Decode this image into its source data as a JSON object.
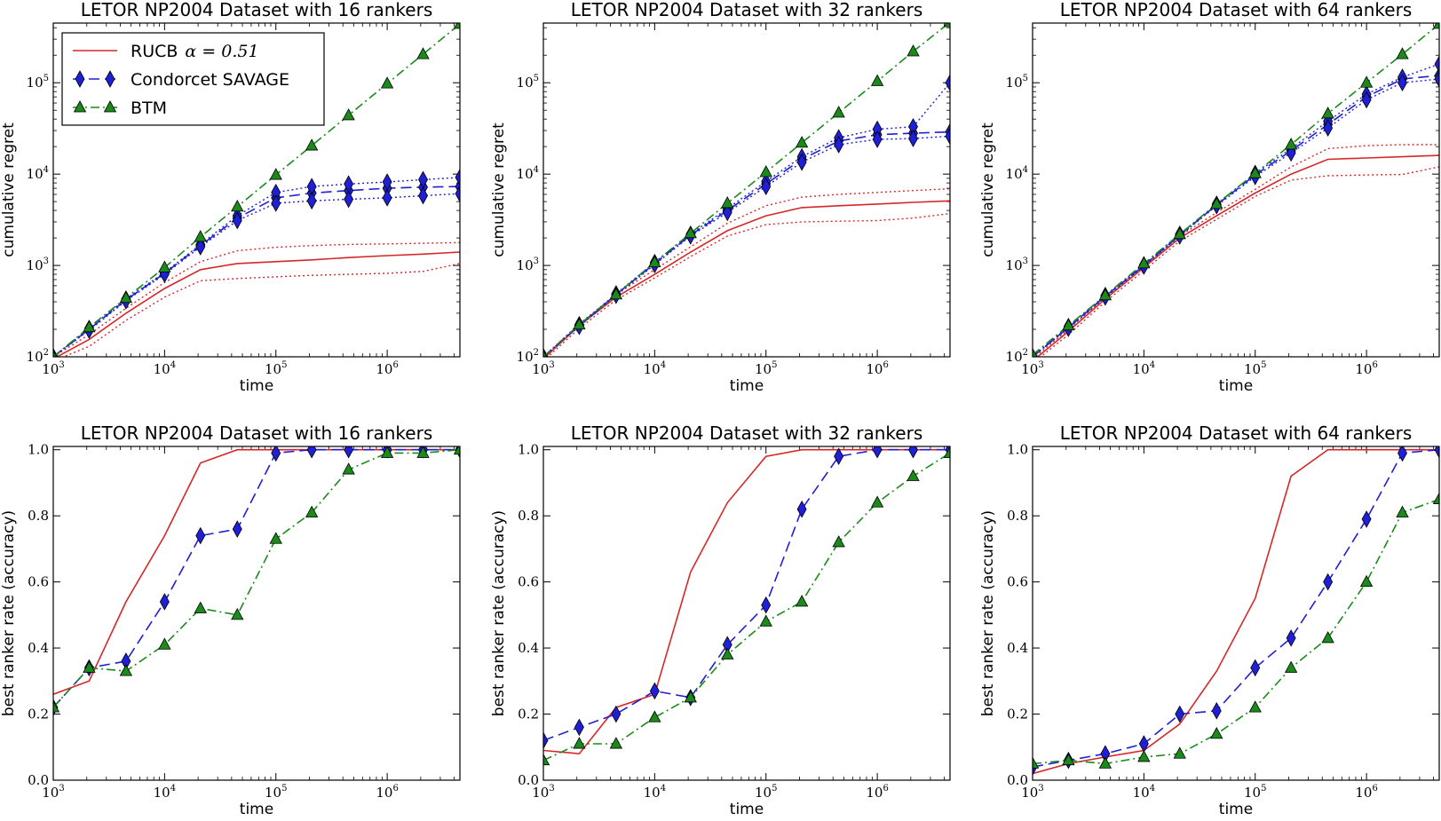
{
  "legend": {
    "entries": [
      {
        "name": "RUCB",
        "math": "α = 0.51",
        "color": "#d62728",
        "style": "solid"
      },
      {
        "name": "Condorcet SAVAGE",
        "color": "#1f1fd6",
        "style": "dashed",
        "marker": "diamond"
      },
      {
        "name": "BTM",
        "color": "#1a8a1a",
        "style": "dashdot",
        "marker": "triangle"
      }
    ]
  },
  "chart_data": [
    {
      "type": "line",
      "title": "LETOR NP2004 Dataset with 16 rankers",
      "xlabel": "time",
      "ylabel": "cumulative regret",
      "xscale": "log",
      "yscale": "log",
      "xlim": [
        1000,
        4500000
      ],
      "ylim": [
        100,
        450000
      ],
      "xticks": [
        "10^3",
        "10^4",
        "10^5",
        "10^6"
      ],
      "yticks": [
        "10^2",
        "10^3",
        "10^4",
        "10^5"
      ],
      "x": [
        1000,
        2100,
        4500,
        10000,
        21000,
        45000,
        100000,
        210000,
        450000,
        1000000,
        2100000,
        4500000
      ],
      "series": [
        {
          "name": "RUCB",
          "values": [
            95,
            155,
            300,
            560,
            900,
            1050,
            1100,
            1150,
            1220,
            1280,
            1330,
            1400
          ]
        },
        {
          "name": "RUCB upper",
          "band": true,
          "values": [
            100,
            175,
            340,
            650,
            1100,
            1450,
            1580,
            1650,
            1700,
            1720,
            1750,
            1780
          ]
        },
        {
          "name": "RUCB lower",
          "band": true,
          "values": [
            90,
            130,
            250,
            450,
            680,
            720,
            750,
            780,
            800,
            820,
            860,
            1050
          ]
        },
        {
          "name": "Condorcet SAVAGE",
          "values": [
            100,
            200,
            420,
            820,
            1650,
            3300,
            5500,
            6200,
            6600,
            7000,
            7200,
            7300
          ]
        },
        {
          "name": "Condorcet SAVAGE upper",
          "band": true,
          "values": [
            100,
            205,
            430,
            840,
            1700,
            3500,
            6300,
            7300,
            7800,
            8200,
            8700,
            9200
          ]
        },
        {
          "name": "Condorcet SAVAGE lower",
          "band": true,
          "values": [
            100,
            195,
            410,
            800,
            1600,
            3100,
            4800,
            5100,
            5300,
            5500,
            5800,
            6100
          ]
        },
        {
          "name": "BTM",
          "values": [
            100,
            210,
            440,
            950,
            2050,
            4400,
            9800,
            20500,
            44000,
            98000,
            205000,
            440000
          ]
        }
      ]
    },
    {
      "type": "line",
      "title": "LETOR NP2004 Dataset with 32 rankers",
      "xlabel": "time",
      "ylabel": "cumulative regret",
      "xscale": "log",
      "yscale": "log",
      "xlim": [
        1000,
        4500000
      ],
      "ylim": [
        100,
        450000
      ],
      "xticks": [
        "10^3",
        "10^4",
        "10^5",
        "10^6"
      ],
      "yticks": [
        "10^2",
        "10^3",
        "10^4",
        "10^5"
      ],
      "x": [
        1000,
        2100,
        4500,
        10000,
        21000,
        45000,
        100000,
        210000,
        450000,
        1000000,
        2100000,
        4500000
      ],
      "series": [
        {
          "name": "RUCB",
          "values": [
            95,
            220,
            450,
            800,
            1400,
            2400,
            3500,
            4300,
            4500,
            4700,
            4900,
            5100
          ]
        },
        {
          "name": "RUCB upper",
          "band": true,
          "values": [
            100,
            230,
            480,
            900,
            1600,
            2900,
            4500,
            5600,
            6000,
            6300,
            6600,
            6900
          ]
        },
        {
          "name": "RUCB lower",
          "band": true,
          "values": [
            90,
            205,
            420,
            730,
            1250,
            2100,
            2800,
            3000,
            3050,
            3100,
            3300,
            3700
          ]
        },
        {
          "name": "Condorcet SAVAGE",
          "values": [
            100,
            220,
            480,
            1050,
            2150,
            4000,
            7800,
            14500,
            23000,
            27000,
            28000,
            29000
          ]
        },
        {
          "name": "Condorcet SAVAGE upper",
          "band": true,
          "values": [
            100,
            225,
            490,
            1080,
            2200,
            4200,
            8300,
            15500,
            25000,
            31000,
            33000,
            100000
          ]
        },
        {
          "name": "Condorcet SAVAGE lower",
          "band": true,
          "values": [
            100,
            215,
            470,
            1020,
            2100,
            3800,
            7300,
            13500,
            21000,
            24000,
            24500,
            26000
          ]
        },
        {
          "name": "BTM",
          "values": [
            100,
            225,
            480,
            1080,
            2250,
            4800,
            10500,
            22000,
            47000,
            104000,
            220000,
            460000
          ]
        }
      ]
    },
    {
      "type": "line",
      "title": "LETOR NP2004 Dataset with 64 rankers",
      "xlabel": "time",
      "ylabel": "cumulative regret",
      "xscale": "log",
      "yscale": "log",
      "xlim": [
        1000,
        4500000
      ],
      "ylim": [
        100,
        450000
      ],
      "xticks": [
        "10^3",
        "10^4",
        "10^5",
        "10^6"
      ],
      "yticks": [
        "10^2",
        "10^3",
        "10^4",
        "10^5"
      ],
      "x": [
        1000,
        2100,
        4500,
        10000,
        21000,
        45000,
        100000,
        210000,
        450000,
        1000000,
        2100000,
        4500000
      ],
      "series": [
        {
          "name": "RUCB",
          "values": [
            90,
            190,
            430,
            950,
            2000,
            3500,
            6200,
            10000,
            14500,
            15000,
            15500,
            16000
          ]
        },
        {
          "name": "RUCB upper",
          "band": true,
          "values": [
            95,
            200,
            450,
            1000,
            2100,
            3800,
            6800,
            12000,
            19000,
            20500,
            21000,
            21000
          ]
        },
        {
          "name": "RUCB lower",
          "band": true,
          "values": [
            85,
            175,
            400,
            880,
            1850,
            3200,
            5700,
            8600,
            9600,
            9800,
            9900,
            12000
          ]
        },
        {
          "name": "Condorcet SAVAGE",
          "values": [
            100,
            210,
            460,
            1000,
            2150,
            4600,
            9800,
            18000,
            35000,
            70000,
            110000,
            120000
          ]
        },
        {
          "name": "Condorcet SAVAGE upper",
          "band": true,
          "values": [
            100,
            215,
            470,
            1020,
            2200,
            4700,
            10200,
            19000,
            38000,
            75000,
            115000,
            160000
          ]
        },
        {
          "name": "Condorcet SAVAGE lower",
          "band": true,
          "values": [
            100,
            205,
            450,
            980,
            2100,
            4500,
            9400,
            17000,
            32000,
            65000,
            100000,
            110000
          ]
        },
        {
          "name": "BTM",
          "values": [
            105,
            220,
            470,
            1050,
            2200,
            4700,
            10200,
            21000,
            46000,
            100000,
            205000,
            440000
          ]
        }
      ]
    },
    {
      "type": "line",
      "title": "LETOR NP2004 Dataset with 16 rankers",
      "xlabel": "time",
      "ylabel": "best ranker rate (accuracy)",
      "xscale": "log",
      "yscale": "linear",
      "xlim": [
        1000,
        4500000
      ],
      "ylim": [
        0.0,
        1.01
      ],
      "xticks": [
        "10^3",
        "10^4",
        "10^5",
        "10^6"
      ],
      "yticks": [
        "0.0",
        "0.2",
        "0.4",
        "0.6",
        "0.8",
        "1.0"
      ],
      "x": [
        1000,
        2100,
        4500,
        10000,
        21000,
        45000,
        100000,
        210000,
        450000,
        1000000,
        2100000,
        4500000
      ],
      "series": [
        {
          "name": "RUCB",
          "values": [
            0.26,
            0.3,
            0.54,
            0.74,
            0.96,
            1.0,
            1.0,
            1.0,
            1.0,
            1.0,
            1.0,
            1.0
          ]
        },
        {
          "name": "Condorcet SAVAGE",
          "values": [
            0.22,
            0.34,
            0.36,
            0.54,
            0.74,
            0.76,
            0.99,
            1.0,
            1.0,
            1.0,
            1.0,
            1.0
          ]
        },
        {
          "name": "BTM",
          "values": [
            0.22,
            0.34,
            0.33,
            0.41,
            0.52,
            0.5,
            0.73,
            0.81,
            0.94,
            0.99,
            0.99,
            1.0
          ]
        }
      ]
    },
    {
      "type": "line",
      "title": "LETOR NP2004 Dataset with 32 rankers",
      "xlabel": "time",
      "ylabel": "best ranker rate (accuracy)",
      "xscale": "log",
      "yscale": "linear",
      "xlim": [
        1000,
        4500000
      ],
      "ylim": [
        0.0,
        1.01
      ],
      "xticks": [
        "10^3",
        "10^4",
        "10^5",
        "10^6"
      ],
      "yticks": [
        "0.0",
        "0.2",
        "0.4",
        "0.6",
        "0.8",
        "1.0"
      ],
      "x": [
        1000,
        2100,
        4500,
        10000,
        21000,
        45000,
        100000,
        210000,
        450000,
        1000000,
        2100000,
        4500000
      ],
      "series": [
        {
          "name": "RUCB",
          "values": [
            0.09,
            0.08,
            0.22,
            0.26,
            0.63,
            0.84,
            0.98,
            1.0,
            1.0,
            1.0,
            1.0,
            1.0
          ]
        },
        {
          "name": "Condorcet SAVAGE",
          "values": [
            0.12,
            0.16,
            0.2,
            0.27,
            0.25,
            0.41,
            0.53,
            0.82,
            0.98,
            1.0,
            1.0,
            1.0
          ]
        },
        {
          "name": "BTM",
          "values": [
            0.06,
            0.11,
            0.11,
            0.19,
            0.25,
            0.38,
            0.48,
            0.54,
            0.72,
            0.84,
            0.92,
            0.99
          ]
        }
      ]
    },
    {
      "type": "line",
      "title": "LETOR NP2004 Dataset with 64 rankers",
      "xlabel": "time",
      "ylabel": "best ranker rate (accuracy)",
      "xscale": "log",
      "yscale": "linear",
      "xlim": [
        1000,
        4500000
      ],
      "ylim": [
        0.0,
        1.01
      ],
      "xticks": [
        "10^3",
        "10^4",
        "10^5",
        "10^6"
      ],
      "yticks": [
        "0.0",
        "0.2",
        "0.4",
        "0.6",
        "0.8",
        "1.0"
      ],
      "x": [
        1000,
        2100,
        4500,
        10000,
        21000,
        45000,
        100000,
        210000,
        450000,
        1000000,
        2100000,
        4500000
      ],
      "series": [
        {
          "name": "RUCB",
          "values": [
            0.02,
            0.05,
            0.07,
            0.09,
            0.17,
            0.33,
            0.55,
            0.92,
            1.0,
            1.0,
            1.0,
            1.0
          ]
        },
        {
          "name": "Condorcet SAVAGE",
          "values": [
            0.04,
            0.06,
            0.08,
            0.11,
            0.2,
            0.21,
            0.34,
            0.43,
            0.6,
            0.79,
            0.99,
            1.0
          ]
        },
        {
          "name": "BTM",
          "values": [
            0.05,
            0.06,
            0.05,
            0.07,
            0.08,
            0.14,
            0.22,
            0.34,
            0.43,
            0.6,
            0.81,
            0.85
          ]
        }
      ]
    }
  ]
}
